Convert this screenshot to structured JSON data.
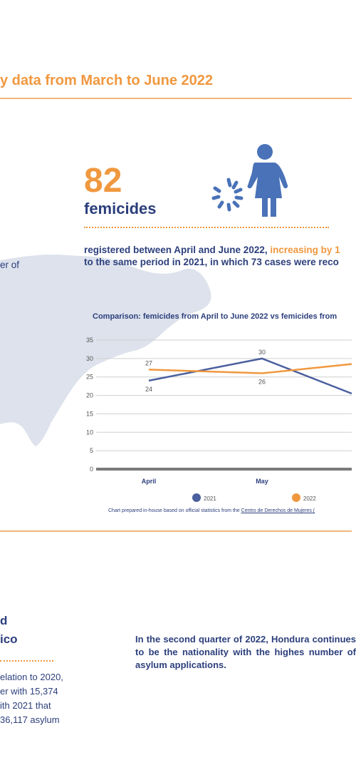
{
  "header": {
    "title": "y data from March to June 2022"
  },
  "femicides": {
    "number": "82",
    "label": "femicides",
    "text_main": "registered between April and June 2022, ",
    "text_highlight": "increasing by 1",
    "text_line2": "to the same period in 2021, in which 73 cases were reco",
    "side_text": "er of"
  },
  "colors": {
    "accent": "#f0983f",
    "navy": "#2c3f7c",
    "series_2021": "#4a5f9e",
    "series_2022": "#f0983f",
    "map": "#dde2ec"
  },
  "icons": [
    "woman-figure-icon",
    "broken-circle-icon"
  ],
  "chart_data": {
    "type": "line",
    "title": "Comparison: femicides from April to June 2022 vs femicides from",
    "categories": [
      "April",
      "May"
    ],
    "yticks": [
      0,
      5,
      10,
      15,
      20,
      25,
      30,
      35
    ],
    "ylim": [
      0,
      35
    ],
    "series": [
      {
        "name": "2021",
        "values": [
          24,
          30
        ],
        "labels": [
          "24",
          "30"
        ],
        "color": "#4a5f9e"
      },
      {
        "name": "2022",
        "values": [
          27,
          26
        ],
        "labels": [
          "27",
          "26"
        ],
        "color": "#f0983f"
      }
    ],
    "legend": [
      "2021",
      "2022"
    ],
    "legend_position": "bottom",
    "grid": true,
    "source_prefix": "Chart prepared in-house based on official statistics from the ",
    "source_link": "Centro de Derechos de Mujeres (",
    "tick_labels": [
      "0",
      "5",
      "10",
      "15",
      "20",
      "25",
      "30",
      "35"
    ]
  },
  "asylum": {
    "heading_line1": "d",
    "heading_line2": "ico",
    "left_lines": [
      "elation to 2020,",
      "er with 15,374",
      "ith 2021 that",
      "36,117 asylum"
    ],
    "right_text": "In the second quarter of 2022, Hondura continues to be the nationality with the highes number of asylum applications."
  }
}
